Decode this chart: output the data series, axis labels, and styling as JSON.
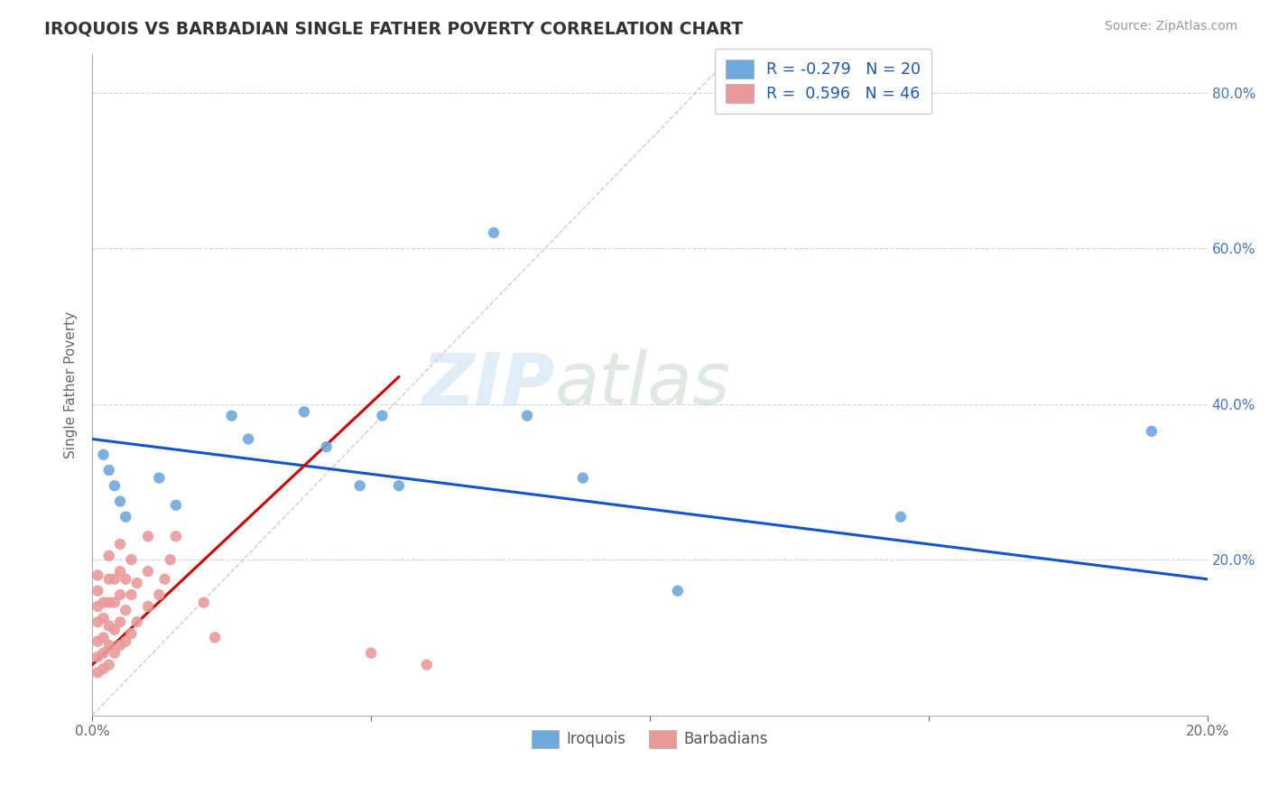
{
  "title": "IROQUOIS VS BARBADIAN SINGLE FATHER POVERTY CORRELATION CHART",
  "source": "Source: ZipAtlas.com",
  "ylabel": "Single Father Poverty",
  "xlim": [
    0.0,
    0.2
  ],
  "ylim": [
    0.0,
    0.85
  ],
  "blue_color": "#6fa8dc",
  "pink_color": "#ea9999",
  "line_blue": "#1155cc",
  "line_pink": "#cc0000",
  "watermark_zip": "ZIP",
  "watermark_atlas": "atlas",
  "iroquois_x": [
    0.002,
    0.003,
    0.004,
    0.005,
    0.006,
    0.012,
    0.015,
    0.025,
    0.028,
    0.038,
    0.042,
    0.048,
    0.052,
    0.055,
    0.072,
    0.078,
    0.088,
    0.105,
    0.145,
    0.19
  ],
  "iroquois_y": [
    0.335,
    0.315,
    0.295,
    0.275,
    0.255,
    0.305,
    0.27,
    0.385,
    0.355,
    0.39,
    0.345,
    0.295,
    0.385,
    0.295,
    0.62,
    0.385,
    0.305,
    0.16,
    0.255,
    0.365
  ],
  "barbadian_x": [
    0.001,
    0.001,
    0.001,
    0.001,
    0.001,
    0.001,
    0.001,
    0.002,
    0.002,
    0.002,
    0.002,
    0.002,
    0.003,
    0.003,
    0.003,
    0.003,
    0.003,
    0.003,
    0.004,
    0.004,
    0.004,
    0.004,
    0.005,
    0.005,
    0.005,
    0.005,
    0.005,
    0.006,
    0.006,
    0.006,
    0.007,
    0.007,
    0.007,
    0.008,
    0.008,
    0.01,
    0.01,
    0.01,
    0.012,
    0.013,
    0.014,
    0.015,
    0.02,
    0.022,
    0.05,
    0.06
  ],
  "barbadian_y": [
    0.055,
    0.075,
    0.095,
    0.12,
    0.14,
    0.16,
    0.18,
    0.06,
    0.08,
    0.1,
    0.125,
    0.145,
    0.065,
    0.09,
    0.115,
    0.145,
    0.175,
    0.205,
    0.08,
    0.11,
    0.145,
    0.175,
    0.09,
    0.12,
    0.155,
    0.185,
    0.22,
    0.095,
    0.135,
    0.175,
    0.105,
    0.155,
    0.2,
    0.12,
    0.17,
    0.14,
    0.185,
    0.23,
    0.155,
    0.175,
    0.2,
    0.23,
    0.145,
    0.1,
    0.08,
    0.065
  ],
  "blue_trend_x0": 0.0,
  "blue_trend_y0": 0.355,
  "blue_trend_x1": 0.2,
  "blue_trend_y1": 0.175,
  "pink_trend_x0": 0.0,
  "pink_trend_y0": 0.065,
  "pink_trend_x1": 0.055,
  "pink_trend_y1": 0.435,
  "ref_line_x0": 0.0,
  "ref_line_y0": 0.0,
  "ref_line_x1": 0.115,
  "ref_line_y1": 0.85
}
